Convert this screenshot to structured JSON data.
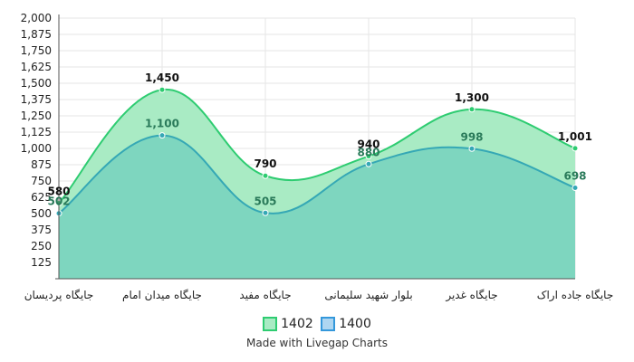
{
  "chart_data": {
    "type": "area",
    "categories": [
      "جایگاه پردیسان",
      "جایگاه میدان امام",
      "جایگاه مفید",
      "بلوار شهید سلیمانی",
      "جایگاه غدیر",
      "جایگاه جاده اراک"
    ],
    "series": [
      {
        "name": "1402",
        "values": [
          580,
          1450,
          790,
          940,
          1300,
          1001
        ],
        "value_labels": [
          "580",
          "1,450",
          "790",
          "940",
          "1,300",
          "1,001"
        ],
        "line_color": "#2ecc71",
        "fill_color": "#a9ebc4",
        "label_color": "#111111"
      },
      {
        "name": "1400",
        "values": [
          502,
          1100,
          505,
          880,
          998,
          698
        ],
        "value_labels": [
          "502",
          "1,100",
          "505",
          "880",
          "998",
          "698"
        ],
        "line_color": "#35a8b5",
        "fill_color": "#7ed6bf",
        "label_color": "#2a7a5a"
      }
    ],
    "ylim": [
      0,
      2000
    ],
    "yticks": [
      125,
      250,
      375,
      500,
      625,
      750,
      875,
      1000,
      1125,
      1250,
      1375,
      1500,
      1625,
      1750,
      1875,
      2000
    ],
    "ytick_labels": [
      "125",
      "250",
      "375",
      "500",
      "625",
      "750",
      "875",
      "1,000",
      "1,125",
      "1,250",
      "1,375",
      "1,500",
      "1,625",
      "1,750",
      "1,875",
      "2,000"
    ],
    "grid": true,
    "legend_position": "bottom"
  },
  "legend": {
    "items": [
      {
        "label": "1402",
        "fill": "#a9ebc4",
        "border": "#2ecc71"
      },
      {
        "label": "1400",
        "fill": "#aed6f1",
        "border": "#3498db"
      }
    ]
  },
  "footer": {
    "credit": "Made with Livegap Charts"
  }
}
